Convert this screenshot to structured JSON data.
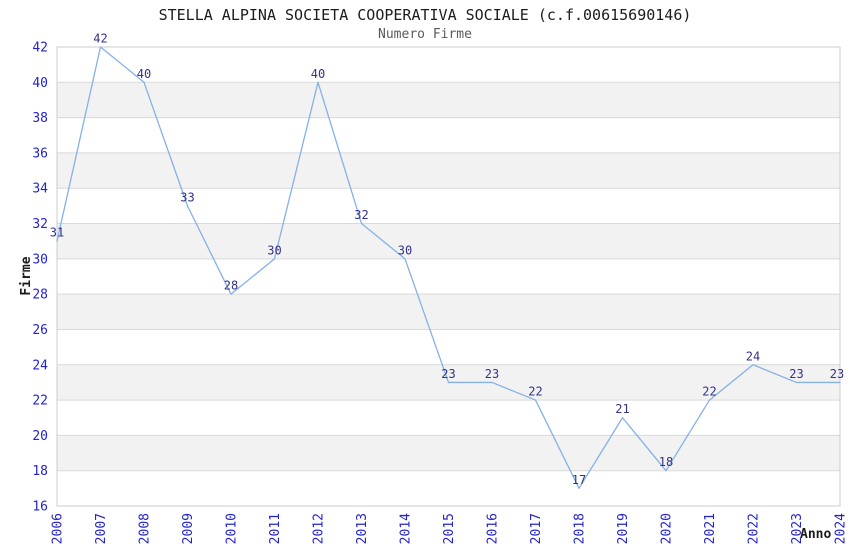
{
  "header": {
    "title": "STELLA ALPINA SOCIETA COOPERATIVA SOCIALE (c.f.00615690146)",
    "subtitle": "Numero Firme"
  },
  "chart_data": {
    "type": "line",
    "title": "STELLA ALPINA SOCIETA COOPERATIVA SOCIALE (c.f.00615690146)",
    "subtitle": "Numero Firme",
    "xlabel": "Anno",
    "ylabel": "Firme",
    "categories": [
      "2006",
      "2007",
      "2008",
      "2009",
      "2010",
      "2011",
      "2012",
      "2013",
      "2014",
      "2015",
      "2016",
      "2017",
      "2018",
      "2019",
      "2020",
      "2021",
      "2022",
      "2023",
      "2024"
    ],
    "values": [
      31,
      42,
      40,
      33,
      28,
      30,
      40,
      32,
      30,
      23,
      23,
      22,
      17,
      21,
      18,
      22,
      24,
      23,
      23
    ],
    "ylim": [
      16,
      42
    ],
    "ytick_step": 2,
    "grid": "horizontal",
    "legend": "none",
    "point_labels": true,
    "colors": {
      "line": "#85b1e8",
      "band": "#f2f2f2",
      "gridline": "#d9d9d9",
      "plot_border": "#cccccc",
      "tick_label": "#2424cc",
      "point_label": "#333389",
      "title": "#1c1c1c",
      "subtitle": "#5a5a5a",
      "background": "#ffffff"
    }
  }
}
